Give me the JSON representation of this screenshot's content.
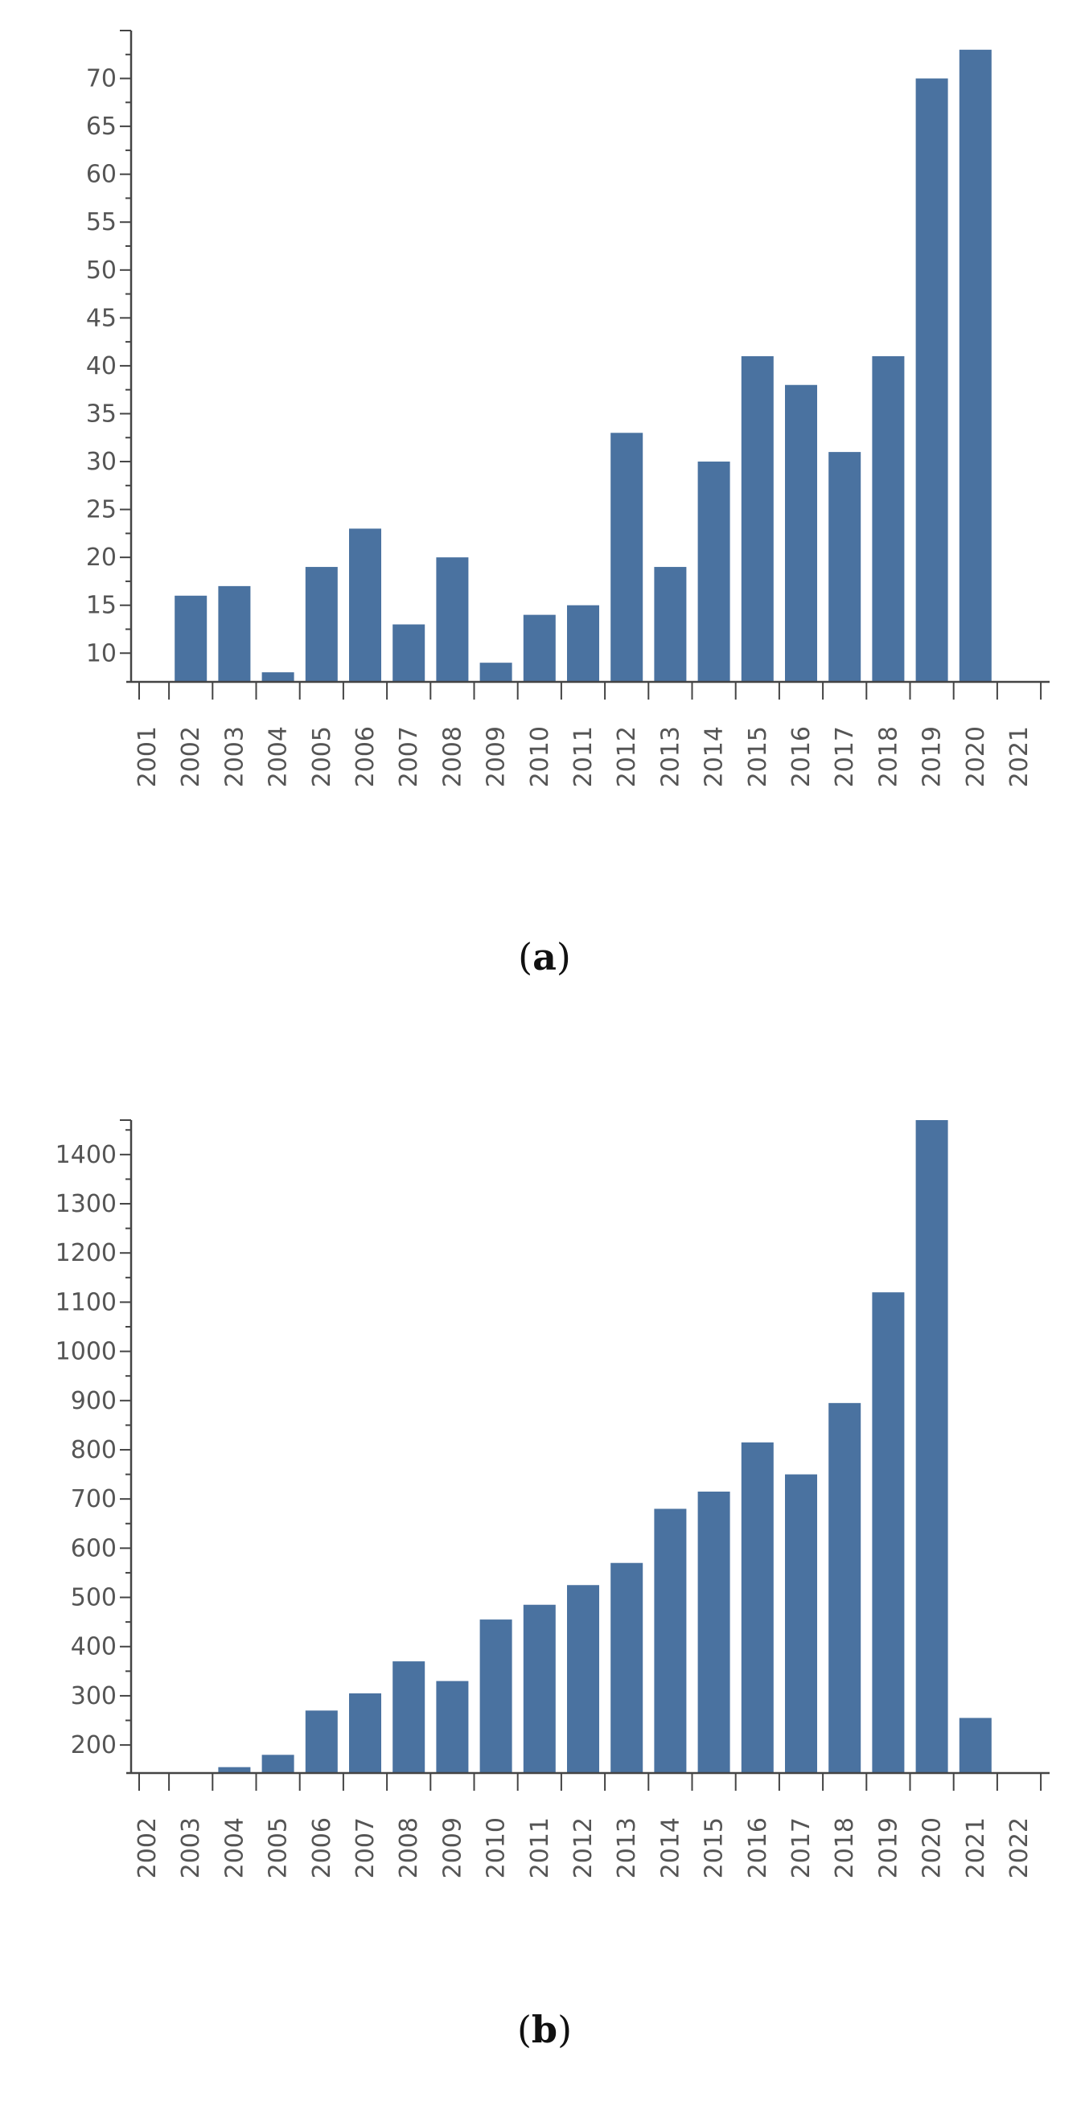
{
  "chart_data": [
    {
      "type": "bar",
      "panel_label": "a",
      "categories": [
        "2001",
        "2002",
        "2003",
        "2004",
        "2005",
        "2006",
        "2007",
        "2008",
        "2009",
        "2010",
        "2011",
        "2012",
        "2013",
        "2014",
        "2015",
        "2016",
        "2017",
        "2018",
        "2019",
        "2020",
        "2021"
      ],
      "values": [
        null,
        16,
        17,
        8,
        19,
        23,
        13,
        20,
        9,
        14,
        15,
        33,
        19,
        30,
        41,
        38,
        31,
        41,
        70,
        73,
        null
      ],
      "y_ticks": [
        10,
        15,
        20,
        25,
        30,
        35,
        40,
        45,
        50,
        55,
        60,
        65,
        70
      ],
      "ylim": [
        7,
        75
      ],
      "title": "",
      "xlabel": "",
      "ylabel": "",
      "bar_color": "#4a72a0",
      "grid": false
    },
    {
      "type": "bar",
      "panel_label": "b",
      "categories": [
        "2002",
        "2003",
        "2004",
        "2005",
        "2006",
        "2007",
        "2008",
        "2009",
        "2010",
        "2011",
        "2012",
        "2013",
        "2014",
        "2015",
        "2016",
        "2017",
        "2018",
        "2019",
        "2020",
        "2021",
        "2022"
      ],
      "values": [
        null,
        null,
        155,
        180,
        270,
        305,
        370,
        330,
        455,
        485,
        525,
        570,
        680,
        715,
        815,
        750,
        895,
        1120,
        1470,
        255,
        null
      ],
      "y_ticks": [
        200,
        300,
        400,
        500,
        600,
        700,
        800,
        900,
        1000,
        1100,
        1200,
        1300,
        1400
      ],
      "ylim": [
        143,
        1470
      ],
      "title": "",
      "xlabel": "",
      "ylabel": "",
      "bar_color": "#4a72a0",
      "grid": false
    }
  ]
}
